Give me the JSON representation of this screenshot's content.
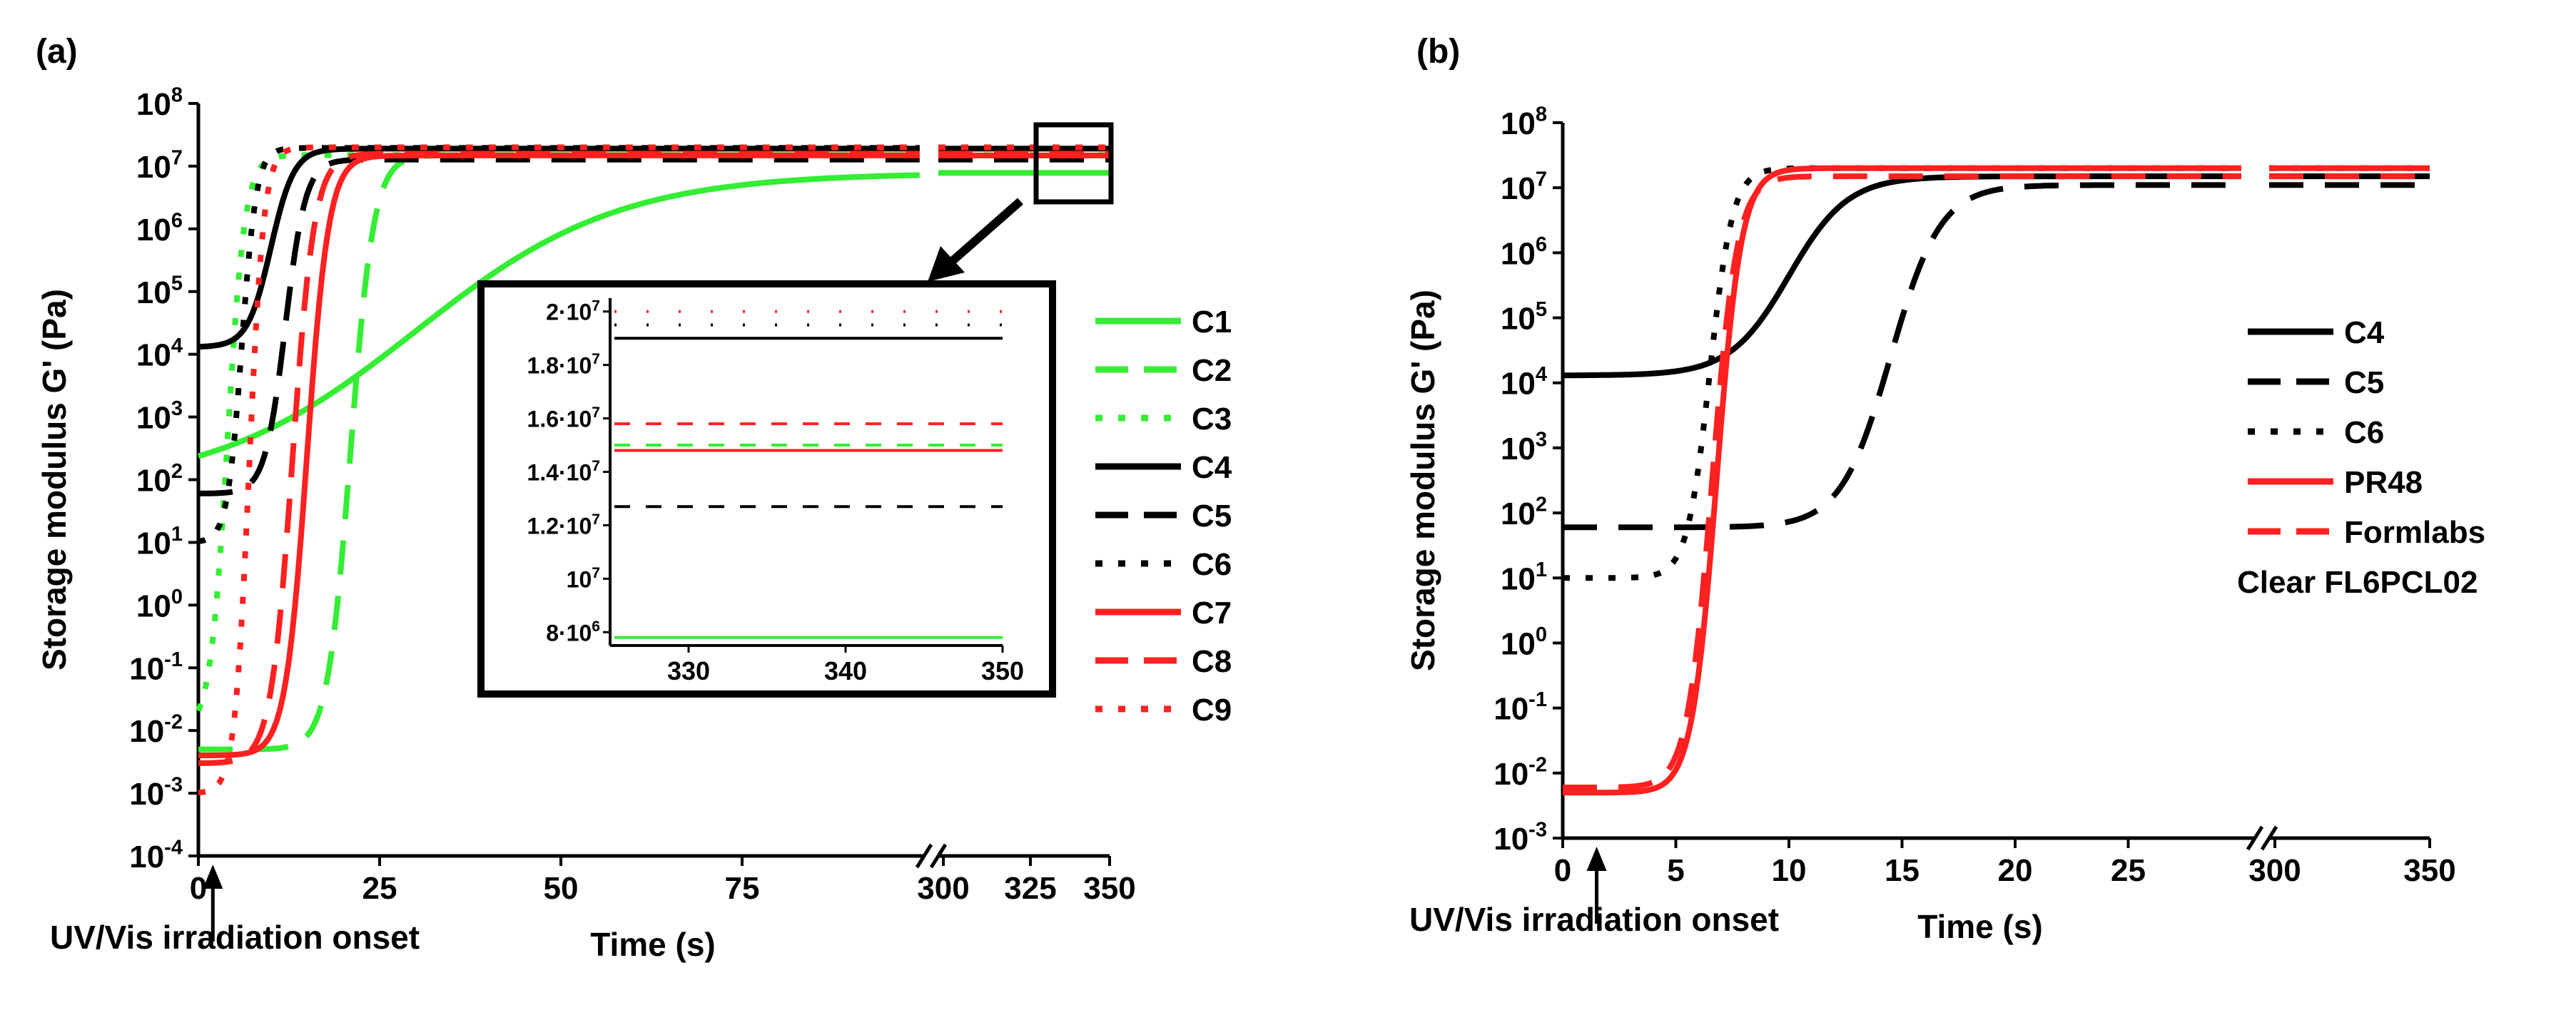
{
  "figure": {
    "panel_a_label": "(a)",
    "panel_b_label": "(b)"
  },
  "chart_data": [
    {
      "type": "line",
      "panel": "(a)",
      "ylabel": "Storage modulus G' (Pa)",
      "xlabel": "Time (s)",
      "y_scale": "log",
      "ylim_exponents": [
        -4,
        8
      ],
      "y_ticks": [
        {
          "exp": "-4"
        },
        {
          "exp": "-3"
        },
        {
          "exp": "-2"
        },
        {
          "exp": "-1"
        },
        {
          "exp": "0"
        },
        {
          "exp": "1"
        },
        {
          "exp": "2"
        },
        {
          "exp": "3"
        },
        {
          "exp": "4"
        },
        {
          "exp": "5"
        },
        {
          "exp": "6"
        },
        {
          "exp": "7"
        },
        {
          "exp": "8"
        }
      ],
      "x_axis_break": true,
      "x_ticks": [
        "0",
        "25",
        "50",
        "75",
        "300",
        "325",
        "350"
      ],
      "annotation": "UV/Vis irradiation onset",
      "annotation_x": 2,
      "x_break_at": [
        100,
        300
      ],
      "legend_position": "right",
      "series": [
        {
          "name": "C1",
          "color": "#33ee33",
          "style": "solid",
          "start": 70,
          "rise_mid": 30,
          "rise_width": 14,
          "plateau": 7800000.0
        },
        {
          "name": "C2",
          "color": "#33ee33",
          "style": "dashed",
          "start": 0.005,
          "rise_mid": 21,
          "rise_width": 1.6,
          "plateau": 15000000.0
        },
        {
          "name": "C3",
          "color": "#33ee33",
          "style": "dotted",
          "start": 0.01,
          "rise_mid": 4,
          "rise_width": 1.2,
          "plateau": 15000000.0
        },
        {
          "name": "C4",
          "color": "#000000",
          "style": "solid",
          "start": 13000.0,
          "rise_mid": 10,
          "rise_width": 1.6,
          "plateau": 19000000.0
        },
        {
          "name": "C5",
          "color": "#000000",
          "style": "dashed",
          "start": 60,
          "rise_mid": 12,
          "rise_width": 1.4,
          "plateau": 12700000.0
        },
        {
          "name": "C6",
          "color": "#000000",
          "style": "dotted",
          "start": 10,
          "rise_mid": 6,
          "rise_width": 1.0,
          "plateau": 19500000.0
        },
        {
          "name": "C7",
          "color": "#ff2020",
          "style": "solid",
          "start": 0.004,
          "rise_mid": 15,
          "rise_width": 1.5,
          "plateau": 14800000.0
        },
        {
          "name": "C8",
          "color": "#ff2020",
          "style": "dashed",
          "start": 0.003,
          "rise_mid": 13,
          "rise_width": 1.5,
          "plateau": 15800000.0
        },
        {
          "name": "C9",
          "color": "#ff2020",
          "style": "dotted",
          "start": 0.001,
          "rise_mid": 7,
          "rise_width": 1.0,
          "plateau": 20000000.0
        }
      ],
      "inset": {
        "x_ticks": [
          "330",
          "340",
          "350"
        ],
        "xlim": [
          325,
          350
        ],
        "y_ticks": [
          {
            "mant": "8·10",
            "exp": "6"
          },
          {
            "mant": "10",
            "exp": "7"
          },
          {
            "mant": "1.2·10",
            "exp": "7"
          },
          {
            "mant": "1.4·10",
            "exp": "7"
          },
          {
            "mant": "1.6·10",
            "exp": "7"
          },
          {
            "mant": "1.8·10",
            "exp": "7"
          },
          {
            "mant": "2·10",
            "exp": "7"
          }
        ],
        "tick_values": [
          8000000.0,
          10000000.0,
          12000000.0,
          14000000.0,
          16000000.0,
          18000000.0,
          20000000.0
        ],
        "ylim": [
          7500000.0,
          20500000.0
        ]
      }
    },
    {
      "type": "line",
      "panel": "(b)",
      "ylabel": "Storage modulus G' (Pa)",
      "xlabel": "Time (s)",
      "y_scale": "log",
      "ylim_exponents": [
        -3,
        8
      ],
      "y_ticks": [
        {
          "exp": "-3"
        },
        {
          "exp": "-2"
        },
        {
          "exp": "-1"
        },
        {
          "exp": "0"
        },
        {
          "exp": "1"
        },
        {
          "exp": "2"
        },
        {
          "exp": "3"
        },
        {
          "exp": "4"
        },
        {
          "exp": "5"
        },
        {
          "exp": "6"
        },
        {
          "exp": "7"
        },
        {
          "exp": "8"
        }
      ],
      "x_axis_break": true,
      "x_ticks": [
        "0",
        "5",
        "10",
        "15",
        "20",
        "25",
        "300",
        "350"
      ],
      "annotation": "UV/Vis irradiation onset",
      "annotation_x": 1.5,
      "x_break_at": [
        30,
        300
      ],
      "legend_position": "right",
      "series": [
        {
          "name": "C4",
          "color": "#000000",
          "style": "solid",
          "start": 13000.0,
          "rise_mid": 10,
          "rise_width": 1.3,
          "plateau": 15000000.0
        },
        {
          "name": "C5",
          "color": "#000000",
          "style": "dashed",
          "start": 60,
          "rise_mid": 14.5,
          "rise_width": 1.1,
          "plateau": 11000000.0
        },
        {
          "name": "C6",
          "color": "#000000",
          "style": "dotted",
          "start": 10,
          "rise_mid": 6.5,
          "rise_width": 0.5,
          "plateau": 20000000.0
        },
        {
          "name": "PR48",
          "color": "#ff2020",
          "style": "solid",
          "start": 0.005,
          "rise_mid": 6.8,
          "rise_width": 0.55,
          "plateau": 20000000.0
        },
        {
          "name": "Formlabs",
          "name2": "Clear FL6PCL02",
          "color": "#ff2020",
          "style": "dashed",
          "start": 0.006,
          "rise_mid": 6.6,
          "rise_width": 0.55,
          "plateau": 15000000.0
        }
      ]
    }
  ]
}
